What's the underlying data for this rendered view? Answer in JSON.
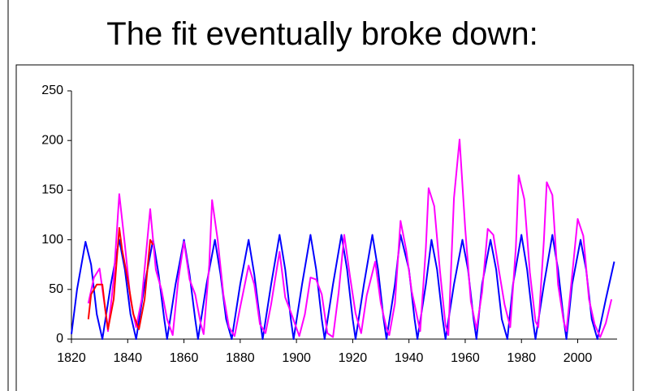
{
  "chart_data": {
    "type": "line",
    "title": "The fit eventually broke down:",
    "xlim": [
      1820,
      2014
    ],
    "xticks": [
      1820,
      1840,
      1860,
      1880,
      1900,
      1920,
      1940,
      1960,
      1980,
      2000
    ],
    "ylim": [
      0,
      250
    ],
    "yticks": [
      0,
      50,
      100,
      150,
      200,
      250
    ],
    "series": [
      {
        "color": "#0000ff",
        "x": [
          1820,
          1822,
          1825,
          1827,
          1829,
          1831,
          1834,
          1837,
          1839,
          1841,
          1843,
          1846,
          1849,
          1851,
          1853,
          1854,
          1857,
          1860,
          1862,
          1864,
          1865,
          1868,
          1871,
          1873,
          1875,
          1877,
          1880,
          1883,
          1885,
          1887,
          1888,
          1891,
          1894,
          1896,
          1898,
          1899,
          1902,
          1905,
          1907,
          1909,
          1910,
          1913,
          1916,
          1918,
          1920,
          1921,
          1924,
          1927,
          1929,
          1931,
          1932,
          1935,
          1937,
          1940,
          1942,
          1943,
          1946,
          1948,
          1950,
          1952,
          1953,
          1956,
          1959,
          1961,
          1963,
          1964,
          1966,
          1969,
          1971,
          1973,
          1975,
          1977,
          1980,
          1982,
          1984,
          1985,
          1988,
          1991,
          1993,
          1995,
          1996,
          1998,
          2001,
          2003,
          2005,
          2007,
          2010,
          2013
        ],
        "values": [
          5,
          50,
          98,
          75,
          25,
          0,
          55,
          100,
          70,
          25,
          0,
          55,
          100,
          65,
          20,
          0,
          55,
          100,
          65,
          20,
          0,
          55,
          100,
          65,
          20,
          0,
          55,
          100,
          65,
          20,
          0,
          55,
          105,
          70,
          20,
          0,
          55,
          105,
          70,
          20,
          0,
          55,
          105,
          70,
          20,
          0,
          55,
          105,
          70,
          20,
          0,
          55,
          105,
          70,
          20,
          0,
          55,
          100,
          70,
          20,
          0,
          55,
          100,
          70,
          20,
          0,
          55,
          100,
          70,
          20,
          0,
          55,
          105,
          70,
          20,
          0,
          55,
          105,
          70,
          20,
          0,
          55,
          100,
          70,
          20,
          0,
          40,
          78
        ]
      },
      {
        "color": "#ff00ff",
        "x": [
          1826,
          1828,
          1830,
          1832,
          1833,
          1835,
          1837,
          1839,
          1841,
          1843,
          1845,
          1848,
          1850,
          1852,
          1854,
          1856,
          1858,
          1860,
          1862,
          1864,
          1866,
          1867,
          1869,
          1870,
          1872,
          1874,
          1876,
          1878,
          1880,
          1883,
          1885,
          1887,
          1889,
          1891,
          1894,
          1896,
          1898,
          1901,
          1903,
          1905,
          1907,
          1909,
          1911,
          1913,
          1915,
          1917,
          1919,
          1921,
          1923,
          1925,
          1928,
          1930,
          1932,
          1933,
          1935,
          1937,
          1939,
          1941,
          1944,
          1946,
          1947,
          1949,
          1951,
          1953,
          1954,
          1956,
          1958,
          1960,
          1962,
          1964,
          1966,
          1968,
          1970,
          1972,
          1974,
          1976,
          1978,
          1979,
          1981,
          1983,
          1985,
          1986,
          1988,
          1989,
          1991,
          1993,
          1995,
          1996,
          1998,
          2000,
          2002,
          2004,
          2006,
          2008,
          2010,
          2012
        ],
        "values": [
          36,
          62,
          71,
          30,
          8,
          60,
          146,
          95,
          40,
          12,
          40,
          131,
          70,
          50,
          20,
          4,
          60,
          98,
          60,
          45,
          15,
          5,
          75,
          140,
          100,
          45,
          12,
          3,
          32,
          74,
          55,
          15,
          6,
          35,
          88,
          42,
          27,
          3,
          25,
          62,
          60,
          45,
          6,
          2,
          47,
          105,
          64,
          26,
          6,
          44,
          78,
          36,
          11,
          4,
          36,
          119,
          90,
          48,
          8,
          92,
          152,
          134,
          69,
          14,
          4,
          142,
          201,
          112,
          38,
          10,
          47,
          111,
          105,
          69,
          35,
          12,
          92,
          165,
          141,
          67,
          18,
          12,
          100,
          158,
          145,
          55,
          18,
          8,
          64,
          121,
          104,
          40,
          15,
          2,
          16,
          40
        ]
      },
      {
        "color": "#ff0000",
        "x": [
          1826,
          1827,
          1829,
          1831,
          1832,
          1833,
          1835,
          1837,
          1838,
          1840,
          1842,
          1844,
          1846,
          1848,
          1849
        ],
        "values": [
          20,
          45,
          55,
          55,
          30,
          10,
          40,
          112,
          90,
          60,
          25,
          10,
          40,
          100,
          95
        ]
      }
    ]
  }
}
